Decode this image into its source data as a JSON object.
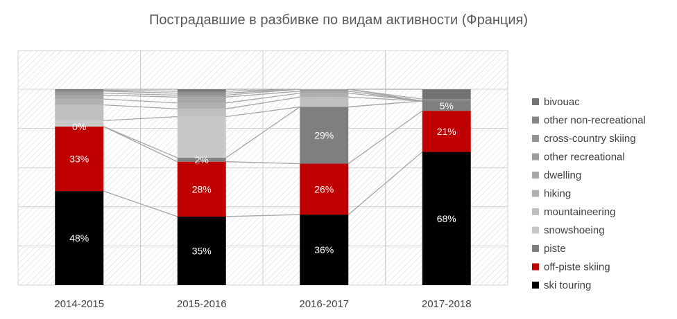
{
  "chart_data": {
    "type": "bar",
    "stacked": true,
    "title": "Пострадавшие в разбивке по видам активности (Франция)",
    "xlabel": "",
    "ylabel": "",
    "ylim": [
      0,
      1
    ],
    "grid": true,
    "legend_position": "right",
    "categories": [
      "2014-2015",
      "2015-2016",
      "2016-2017",
      "2017-2018"
    ],
    "series": [
      {
        "name": "ski touring",
        "color": "#000000",
        "values": [
          0.48,
          0.35,
          0.36,
          0.68
        ],
        "labels": [
          "48%",
          "35%",
          "36%",
          "68%"
        ]
      },
      {
        "name": "off-piste skiing",
        "color": "#c00000",
        "values": [
          0.33,
          0.28,
          0.26,
          0.21
        ],
        "labels": [
          "33%",
          "28%",
          "26%",
          "21%"
        ]
      },
      {
        "name": "piste",
        "color": "#7f7f7f",
        "values": [
          0.0,
          0.02,
          0.29,
          0.05
        ],
        "labels": [
          "0%",
          "2%",
          "29%",
          "5%"
        ]
      },
      {
        "name": "snowshoeing",
        "color": "#c8c8c8",
        "values": [
          0.03,
          0.21,
          0.0,
          0.0
        ],
        "labels": [
          "",
          "",
          "",
          ""
        ]
      },
      {
        "name": "mountaineering",
        "color": "#bfbfbf",
        "values": [
          0.08,
          0.04,
          0.05,
          0.0
        ],
        "labels": [
          "",
          "",
          "",
          ""
        ]
      },
      {
        "name": "hiking",
        "color": "#b0b0b0",
        "values": [
          0.03,
          0.03,
          0.02,
          0.0
        ],
        "labels": [
          "",
          "",
          "",
          ""
        ]
      },
      {
        "name": "dwelling",
        "color": "#a6a6a6",
        "values": [
          0.02,
          0.03,
          0.01,
          0.0
        ],
        "labels": [
          "",
          "",
          "",
          ""
        ]
      },
      {
        "name": "other recreational",
        "color": "#9c9c9c",
        "values": [
          0.01,
          0.01,
          0.01,
          0.0
        ],
        "labels": [
          "",
          "",
          "",
          ""
        ]
      },
      {
        "name": "cross-country skiing",
        "color": "#929292",
        "values": [
          0.01,
          0.01,
          0.0,
          0.0
        ],
        "labels": [
          "",
          "",
          "",
          ""
        ]
      },
      {
        "name": "other non-recreational",
        "color": "#878787",
        "values": [
          0.005,
          0.01,
          0.0,
          0.01
        ],
        "labels": [
          "",
          "",
          "",
          ""
        ]
      },
      {
        "name": "bivouac",
        "color": "#737373",
        "values": [
          0.005,
          0.01,
          0.0,
          0.05
        ],
        "labels": [
          "",
          "",
          "",
          ""
        ]
      }
    ]
  }
}
